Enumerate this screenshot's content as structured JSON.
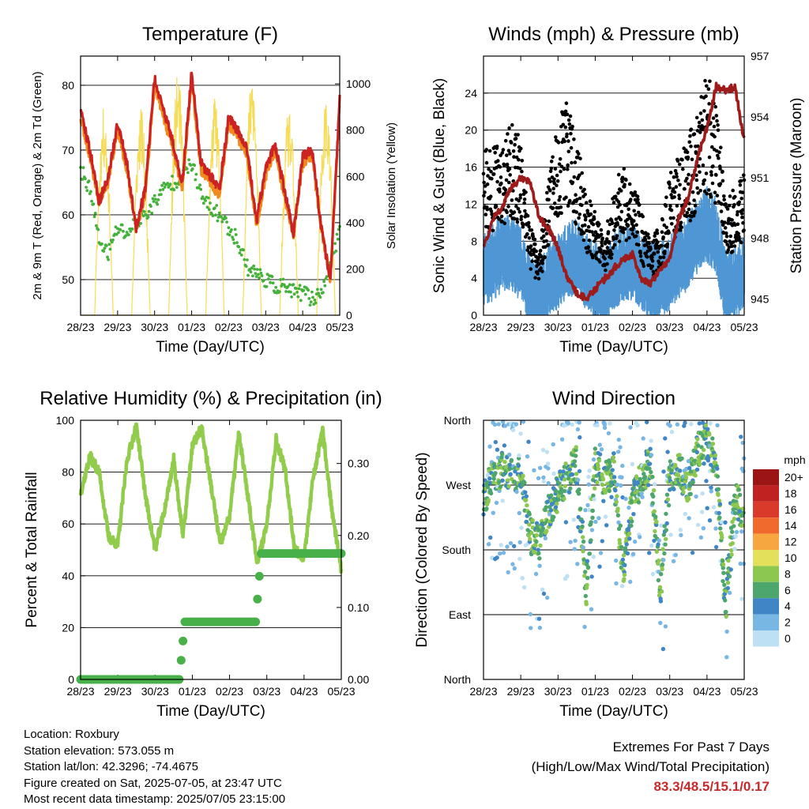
{
  "colors": {
    "temp_2m": "#cc2222",
    "temp_9m": "#f08a1c",
    "dewpoint": "#44b23a",
    "solar": "#f5dc58",
    "wind": "#4f97d4",
    "gust": "#000000",
    "pressure": "#9e1b1b",
    "rh": "#92cc4c",
    "precip": "#48b048",
    "extremes": "#c62a2a"
  },
  "x_ticks": [
    "28/23",
    "29/23",
    "30/23",
    "01/23",
    "02/23",
    "03/23",
    "04/23",
    "05/23"
  ],
  "x_label": "Time (Day/UTC)",
  "chart_data": [
    {
      "id": "temperature",
      "type": "line",
      "title": "Temperature (F)",
      "xlabel": "Time (Day/UTC)",
      "ylabel": "2m & 9m T (Red, Orange) & 2m Td (Green)",
      "y2label": "Solar Insolation (Yellow)",
      "ylim": [
        44.5,
        84.5
      ],
      "yticks": [
        50,
        60,
        70,
        80
      ],
      "y2lim": [
        0,
        1120
      ],
      "y2ticks": [
        0,
        200,
        400,
        600,
        800,
        1000
      ],
      "grid": true,
      "x_days": [
        0,
        0.25,
        0.5,
        0.75,
        1,
        1.25,
        1.5,
        1.75,
        2,
        2.25,
        2.5,
        2.75,
        3,
        3.25,
        3.5,
        3.75,
        4,
        4.25,
        4.5,
        4.75,
        5,
        5.25,
        5.5,
        5.75,
        6,
        6.25,
        6.5,
        6.75,
        7
      ],
      "series": [
        {
          "key": "temp_2m",
          "values": [
            76,
            70,
            62,
            66,
            74,
            68,
            58,
            64,
            81,
            76,
            71,
            65,
            82,
            68,
            66,
            64,
            75,
            73,
            70,
            59,
            67,
            71,
            64,
            57,
            69,
            70,
            58,
            50,
            78
          ]
        },
        {
          "key": "temp_9m",
          "values": [
            75,
            69,
            62,
            65,
            73,
            67,
            58,
            63,
            80,
            75,
            70,
            64,
            81,
            67,
            65,
            63,
            74,
            72,
            69,
            58,
            66,
            70,
            63,
            57,
            68,
            69,
            58,
            50,
            77
          ]
        },
        {
          "key": "dewpoint",
          "values": [
            67,
            64,
            56,
            54,
            58,
            57,
            59,
            60,
            62,
            64,
            65,
            66,
            68,
            63,
            61,
            60,
            58,
            56,
            52,
            51,
            50,
            49,
            49,
            48,
            48,
            47,
            48,
            53,
            57
          ]
        },
        {
          "key": "solar",
          "values": [
            0,
            0,
            900,
            0,
            0,
            0,
            900,
            0,
            0,
            0,
            1050,
            0,
            0,
            0,
            950,
            0,
            0,
            0,
            1050,
            0,
            0,
            0,
            900,
            0,
            0,
            0,
            1000,
            0,
            0
          ]
        }
      ]
    },
    {
      "id": "winds",
      "type": "scatter",
      "title": "Winds (mph) & Pressure (mb)",
      "xlabel": "Time (Day/UTC)",
      "ylabel": "Sonic Wind & Gust (Blue, Black)",
      "y2label": "Station Pressure (Maroon)",
      "ylim": [
        0,
        28
      ],
      "yticks": [
        0,
        4,
        8,
        12,
        16,
        20,
        24
      ],
      "y2lim": [
        944.2,
        957
      ],
      "y2ticks": [
        945,
        948,
        951,
        954,
        957
      ],
      "grid": true,
      "x_days": [
        0,
        0.25,
        0.5,
        0.75,
        1,
        1.25,
        1.5,
        1.75,
        2,
        2.25,
        2.5,
        2.75,
        3,
        3.25,
        3.5,
        3.75,
        4,
        4.25,
        4.5,
        4.75,
        5,
        5.25,
        5.5,
        5.75,
        6,
        6.25,
        6.5,
        6.75,
        7
      ],
      "series": [
        {
          "key": "wind_mean",
          "values": [
            5,
            6,
            7,
            7,
            6,
            3,
            2,
            4,
            5,
            6,
            7,
            5,
            4,
            3,
            5,
            6,
            6,
            5,
            4,
            4,
            5,
            6,
            7,
            9,
            10,
            9,
            3,
            4,
            5
          ]
        },
        {
          "key": "gust_mean",
          "values": [
            13,
            13,
            14,
            15,
            14,
            7,
            5,
            11,
            15,
            17,
            14,
            10,
            8,
            6,
            10,
            12,
            11,
            8,
            6,
            7,
            11,
            13,
            14,
            16,
            19,
            17,
            9,
            10,
            11
          ]
        },
        {
          "key": "pressure",
          "values": [
            947.5,
            949,
            949.5,
            950.5,
            951,
            950.8,
            949,
            948.5,
            947.5,
            946,
            945.3,
            945,
            945.5,
            946,
            946.5,
            947,
            947.2,
            946,
            945.8,
            946.5,
            947,
            949,
            950,
            952,
            953.5,
            955.5,
            955.3,
            955.5,
            952.8
          ]
        }
      ]
    },
    {
      "id": "humidity",
      "type": "line",
      "title": "Relative Humidity (%) & Precipitation (in)",
      "xlabel": "Time (Day/UTC)",
      "ylabel": "Percent & Total Rainfall",
      "ylim": [
        0,
        100
      ],
      "yticks": [
        0,
        20,
        40,
        60,
        80,
        100
      ],
      "y2lim": [
        0,
        0.36
      ],
      "y2ticks": [
        "0.00",
        "0.10",
        "0.20",
        "0.30"
      ],
      "grid": true,
      "x_days": [
        0,
        0.25,
        0.5,
        0.75,
        1,
        1.25,
        1.5,
        1.75,
        2,
        2.25,
        2.5,
        2.75,
        3,
        3.25,
        3.5,
        3.75,
        4,
        4.25,
        4.5,
        4.75,
        5,
        5.25,
        5.5,
        5.75,
        6,
        6.25,
        6.5,
        6.75,
        7
      ],
      "series": [
        {
          "key": "rh",
          "values": [
            72,
            86,
            80,
            55,
            52,
            85,
            98,
            70,
            50,
            65,
            85,
            55,
            90,
            97,
            75,
            52,
            63,
            95,
            70,
            45,
            60,
            93,
            80,
            50,
            47,
            78,
            96,
            65,
            42
          ]
        },
        {
          "key": "precip",
          "values": [
            0,
            0,
            0,
            0,
            0,
            0,
            0,
            0,
            0,
            0,
            0,
            0.03,
            0.08,
            0.08,
            0.08,
            0.08,
            0.08,
            0.08,
            0.08,
            0.15,
            0.175,
            0.175,
            0.175,
            0.175,
            0.175,
            0.175,
            0.175,
            0.175,
            0.175
          ]
        }
      ]
    },
    {
      "id": "direction",
      "type": "scatter",
      "title": "Wind Direction",
      "xlabel": "Time (Day/UTC)",
      "ylabel": "Direction (Colored By Speed)",
      "ycategories": [
        "North",
        "East",
        "South",
        "West",
        "North"
      ],
      "ylim": [
        0,
        360
      ],
      "grid": true,
      "legend": {
        "title": "mph",
        "position": "right",
        "labels": [
          "20+",
          "18",
          "16",
          "14",
          "12",
          "10",
          "8",
          "6",
          "4",
          "2",
          "0"
        ],
        "colors": [
          "#9b1515",
          "#c02222",
          "#d93a2a",
          "#ef6a2c",
          "#f7a740",
          "#e3e05c",
          "#8cc74f",
          "#4da66b",
          "#3f86c6",
          "#78b6e3",
          "#bde0f5"
        ]
      },
      "x_days": [
        0,
        0.25,
        0.5,
        0.75,
        1,
        1.25,
        1.5,
        1.75,
        2,
        2.25,
        2.5,
        2.75,
        3,
        3.25,
        3.5,
        3.75,
        4,
        4.25,
        4.5,
        4.75,
        5,
        5.25,
        5.5,
        5.75,
        6,
        6.25,
        6.5,
        6.75,
        7
      ],
      "series": [
        {
          "key": "direction_deg",
          "values": [
            250,
            280,
            290,
            285,
            290,
            200,
            190,
            230,
            260,
            280,
            300,
            120,
            300,
            280,
            290,
            150,
            250,
            280,
            300,
            120,
            280,
            290,
            270,
            320,
            330,
            300,
            100,
            250,
            230
          ]
        }
      ]
    }
  ],
  "info": {
    "location": "Location: Roxbury",
    "elevation": "Station elevation: 573.055 m",
    "latlon": "Station lat/lon: 42.3296; -74.4675",
    "created": "Figure created on Sat, 2025-07-05, at 23:47 UTC",
    "timestamp": "Most recent data timestamp: 2025/07/05 23:15:00"
  },
  "extremes": {
    "title": "Extremes For Past 7 Days",
    "subtitle": "(High/Low/Max Wind/Total Precipitation)",
    "values": "83.3/48.5/15.1/0.17"
  }
}
